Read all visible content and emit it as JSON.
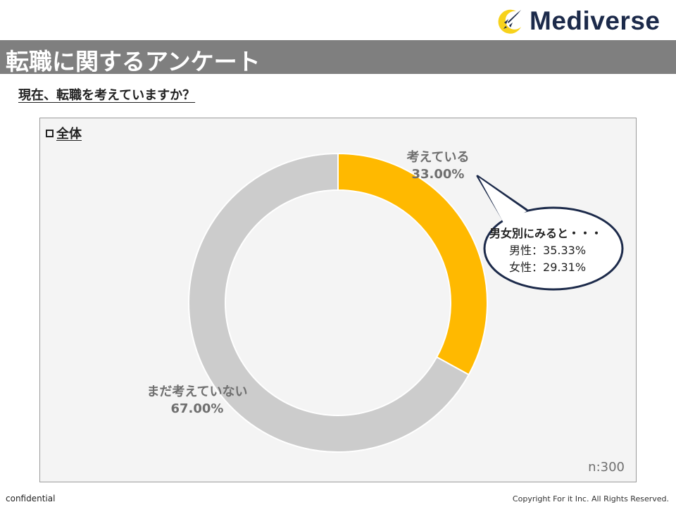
{
  "brand": {
    "name": "Mediverse",
    "logo_icon": "rocket-moon-icon",
    "accent": "#f7d21b",
    "text_color": "#1c2a4a"
  },
  "header": {
    "title": "転職に関するアンケート"
  },
  "question": "現在、転職を考えていますか？",
  "panel": {
    "title": "全体",
    "sample_size": "n:300"
  },
  "chart_data": {
    "type": "pie",
    "style": "donut",
    "categories": [
      "考えている",
      "まだ考えていない"
    ],
    "values": [
      33.0,
      67.0
    ],
    "value_labels": [
      "33.00%",
      "67.00%"
    ],
    "colors": [
      "#ffb900",
      "#cccccc"
    ]
  },
  "callout": {
    "heading": "男女別にみると・・・",
    "rows": [
      {
        "label": "男性",
        "sep": "：",
        "value": "35.33%"
      },
      {
        "label": "女性",
        "sep": "：",
        "value": "29.31%"
      }
    ]
  },
  "footer": {
    "left": "confidential",
    "right": "Copyright For it Inc. All Rights Reserved."
  }
}
